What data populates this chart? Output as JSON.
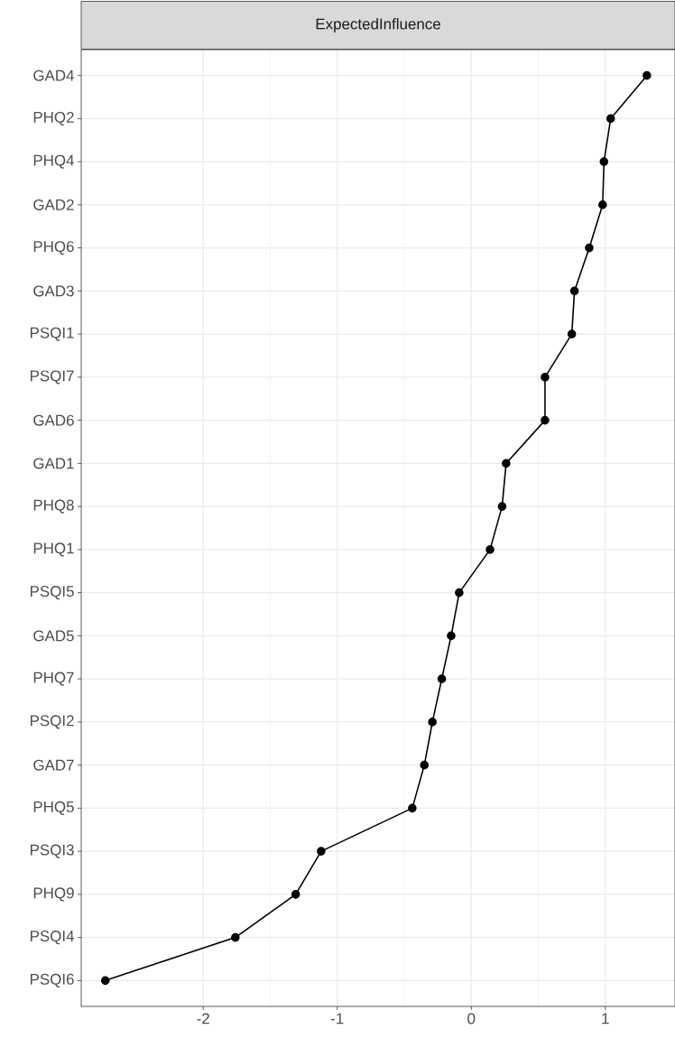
{
  "chart_data": {
    "type": "line",
    "orientation": "horizontal",
    "title": "ExpectedInfluence",
    "categories": [
      "GAD4",
      "PHQ2",
      "PHQ4",
      "GAD2",
      "PHQ6",
      "GAD3",
      "PSQI1",
      "PSQI7",
      "GAD6",
      "GAD1",
      "PHQ8",
      "PHQ1",
      "PSQI5",
      "GAD5",
      "PHQ7",
      "PSQI2",
      "GAD7",
      "PHQ5",
      "PSQI3",
      "PHQ9",
      "PSQI4",
      "PSQI6"
    ],
    "values": [
      1.31,
      1.04,
      0.99,
      0.98,
      0.88,
      0.77,
      0.75,
      0.55,
      0.55,
      0.26,
      0.23,
      0.14,
      -0.09,
      -0.15,
      -0.22,
      -0.29,
      -0.35,
      -0.44,
      -1.12,
      -1.31,
      -1.76,
      -2.73
    ],
    "color": "#000000",
    "marker": "circle",
    "line_style": "solid",
    "grid": true,
    "xlim": [
      -2.91,
      1.52
    ],
    "xticks": [
      -2,
      -1,
      0,
      1
    ]
  }
}
